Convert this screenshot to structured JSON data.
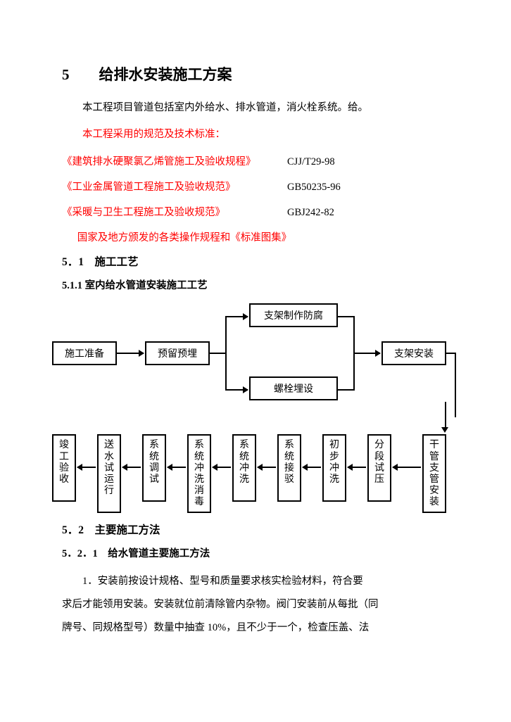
{
  "heading1": "5　　给排水安装施工方案",
  "intro": "本工程项目管道包括室内外给水、排水管道，消火栓系统。给。",
  "std_intro": "本工程采用的规范及技术标准：",
  "standards": [
    {
      "title": "《建筑排水硬聚氯乙烯管施工及验收规程》",
      "code": "CJJ/T29-98"
    },
    {
      "title": "《工业金属管道工程施工及验收规范》",
      "code": "GB50235-96"
    },
    {
      "title": "《采暖与卫生工程施工及验收规范》",
      "code": "GBJ242-82"
    }
  ],
  "std_last": "国家及地方颁发的各类操作规程和《标准图集》",
  "h2": "5．1　施工工艺",
  "h3": "5.1.1 室内给水管道安装施工工艺",
  "flow1": {
    "nodes": {
      "n1": "施工准备",
      "n2": "预留预埋",
      "n3": "支架制作防腐",
      "n4": "螺栓埋设",
      "n5": "支架安装"
    },
    "colors": {
      "border": "#000000",
      "bg": "#ffffff",
      "text": "#000000"
    }
  },
  "flow2": {
    "nodes": [
      "竣工验收",
      "送水试运行",
      "系统调试",
      "系统冲洗消毒",
      "系统冲洗",
      "系统接驳",
      "初步冲洗",
      "分段试压",
      "干管支管安装"
    ],
    "colors": {
      "border": "#000000",
      "bg": "#ffffff",
      "text": "#000000"
    }
  },
  "h2b": "5．2　主要施工方法",
  "h3b": "5．2．1　给水管道主要施工方法",
  "body1": "1．安装前按设计规格、型号和质量要求核实检验材料，符合要",
  "body2": "求后才能领用安装。安装就位前清除管内杂物。阀门安装前从每批（同",
  "body3": "牌号、同规格型号）数量中抽查 10%，且不少于一个，检查压盖、法"
}
